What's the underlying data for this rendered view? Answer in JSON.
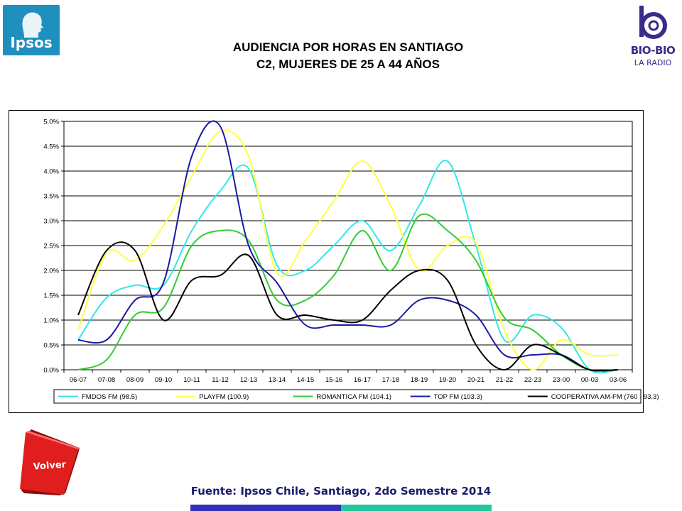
{
  "logos": {
    "left": "Ipsos",
    "right_name": "BIO-BIO",
    "right_sub": "LA RADIO"
  },
  "title": {
    "line1": "AUDIENCIA POR HORAS EN SANTIAGO",
    "line2": "C2, MUJERES DE 25 A 44 AÑOS"
  },
  "volver_label": "Volver",
  "source": "Fuente: Ipsos Chile, Santiago, 2do Semestre 2014",
  "colors": {
    "fmdos": "#33E6E6",
    "play": "#FFFF40",
    "romantica": "#33CC33",
    "top": "#1A1AA6",
    "cooperativa": "#000000",
    "volver": "#E01E1E",
    "bar_blue": "#3030B8",
    "bar_teal": "#22C7A0"
  },
  "chart_data": {
    "type": "line",
    "categories": [
      "06-07",
      "07-08",
      "08-09",
      "09-10",
      "10-11",
      "11-12",
      "12-13",
      "13-14",
      "14-15",
      "15-16",
      "16-17",
      "17-18",
      "18-19",
      "19-20",
      "20-21",
      "21-22",
      "22-23",
      "23-00",
      "00-03",
      "03-06"
    ],
    "y_ticks": [
      "0.0%",
      "0.5%",
      "1.0%",
      "1.5%",
      "2.0%",
      "2.5%",
      "3.0%",
      "3.5%",
      "4.0%",
      "4.5%",
      "5.0%"
    ],
    "ylim": [
      0,
      5.0
    ],
    "grid": true,
    "legend_position": "bottom",
    "series": [
      {
        "name": "FMDOS FM (98.5)",
        "color": "#33E6E6",
        "values": [
          0.6,
          1.45,
          1.7,
          1.7,
          2.8,
          3.6,
          4.05,
          2.1,
          2.0,
          2.5,
          3.0,
          2.4,
          3.3,
          4.2,
          2.5,
          0.6,
          1.1,
          0.85,
          0.0,
          0.0
        ]
      },
      {
        "name": "PLAYFM (100.9)",
        "color": "#FFFF40",
        "values": [
          0.8,
          2.35,
          2.2,
          2.9,
          3.9,
          4.8,
          4.3,
          1.95,
          2.6,
          3.4,
          4.2,
          3.3,
          2.0,
          2.5,
          2.55,
          0.8,
          0.0,
          0.6,
          0.3,
          0.3
        ]
      },
      {
        "name": "ROMANTICA FM (104.1)",
        "color": "#33CC33",
        "values": [
          0.0,
          0.2,
          1.1,
          1.25,
          2.5,
          2.8,
          2.6,
          1.4,
          1.4,
          1.9,
          2.8,
          2.0,
          3.1,
          2.8,
          2.2,
          1.05,
          0.8,
          0.3,
          0.0,
          0.0
        ]
      },
      {
        "name": "TOP FM (103.3)",
        "color": "#1A1AA6",
        "values": [
          0.6,
          0.6,
          1.4,
          1.75,
          4.3,
          4.9,
          2.5,
          1.75,
          0.9,
          0.9,
          0.9,
          0.9,
          1.4,
          1.4,
          1.1,
          0.3,
          0.3,
          0.3,
          0.0,
          0.0
        ]
      },
      {
        "name": "COOPERATIVA AM-FM (760 - 93.3)",
        "color": "#000000",
        "values": [
          1.1,
          2.4,
          2.4,
          1.0,
          1.8,
          1.9,
          2.3,
          1.1,
          1.1,
          1.0,
          1.0,
          1.6,
          2.0,
          1.8,
          0.5,
          0.0,
          0.5,
          0.3,
          0.0,
          0.0
        ]
      }
    ]
  }
}
